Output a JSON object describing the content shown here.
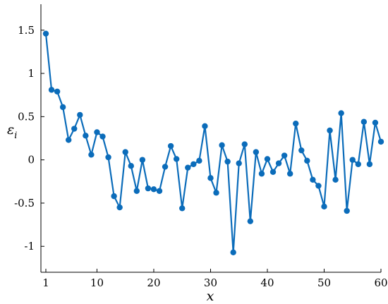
{
  "chart_data": {
    "type": "line",
    "xlabel": "x",
    "ylabel": "ε",
    "ylabel_sub": "i",
    "xlim": [
      0,
      60
    ],
    "ylim": [
      -1.3,
      1.8
    ],
    "xticks": [
      1,
      10,
      20,
      30,
      40,
      50,
      60
    ],
    "xtick_labels": [
      "1",
      "10",
      "20",
      "30",
      "40",
      "50",
      "60"
    ],
    "yticks": [
      1.5,
      1,
      0.5,
      0,
      -0.5,
      -1
    ],
    "ytick_labels": [
      "1.5",
      "1",
      "0.5",
      "0",
      "-0.5",
      "-1"
    ],
    "grid": false,
    "color": "#0b6cba",
    "series": [
      {
        "x": [
          1,
          2,
          3,
          4,
          5,
          6,
          7,
          8,
          9,
          10,
          11,
          12,
          13,
          14,
          15,
          16,
          17,
          18,
          19,
          20,
          21,
          22,
          23,
          24,
          25,
          26,
          27,
          28,
          29,
          30,
          31,
          32,
          33,
          34,
          35,
          36,
          37,
          38,
          39,
          40,
          41,
          42,
          43,
          44,
          45,
          46,
          47,
          48,
          49,
          50,
          51,
          52,
          53,
          54,
          55,
          56,
          57,
          58,
          59,
          60
        ],
        "values": [
          1.46,
          0.81,
          0.79,
          0.61,
          0.23,
          0.36,
          0.52,
          0.28,
          0.06,
          0.32,
          0.27,
          0.03,
          -0.42,
          -0.55,
          0.09,
          -0.07,
          -0.36,
          0.0,
          -0.33,
          -0.34,
          -0.36,
          -0.08,
          0.16,
          0.01,
          -0.56,
          -0.09,
          -0.05,
          -0.01,
          0.39,
          -0.21,
          -0.38,
          0.17,
          -0.02,
          -1.07,
          -0.04,
          0.18,
          -0.71,
          0.09,
          -0.16,
          0.01,
          -0.14,
          -0.04,
          0.05,
          -0.16,
          0.42,
          0.11,
          -0.01,
          -0.23,
          -0.3,
          -0.54,
          0.34,
          -0.23,
          0.54,
          -0.59,
          0.0,
          -0.05,
          0.44,
          -0.05,
          0.43,
          0.21
        ]
      }
    ]
  }
}
